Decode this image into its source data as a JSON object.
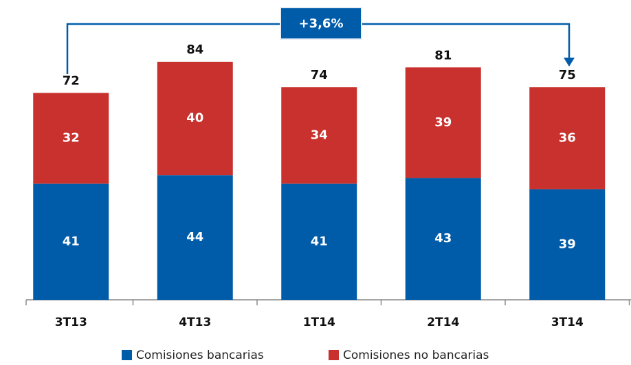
{
  "chart_data": {
    "type": "stacked_bar",
    "categories": [
      "3T13",
      "4T13",
      "1T14",
      "2T14",
      "3T14"
    ],
    "series": [
      {
        "name": "Comisiones bancarias",
        "color": "#005ca9",
        "values": [
          41,
          44,
          41,
          43,
          39
        ]
      },
      {
        "name": "Comisiones no bancarias",
        "color": "#c8312d",
        "values": [
          32,
          40,
          34,
          39,
          36
        ]
      }
    ],
    "totals": [
      72,
      84,
      74,
      81,
      75
    ],
    "annotation": "+3,6%"
  }
}
